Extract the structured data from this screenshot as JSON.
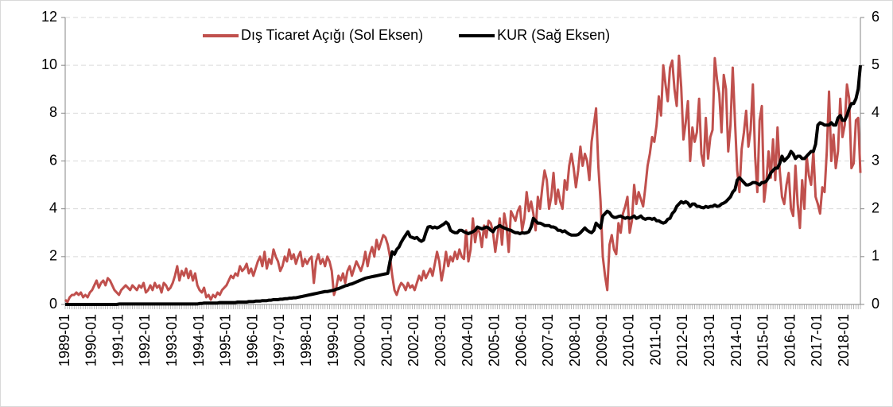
{
  "chart_data": {
    "type": "line",
    "categories": [
      "1989-01",
      null,
      null,
      null,
      null,
      null,
      null,
      null,
      null,
      null,
      null,
      null,
      "1990-01",
      null,
      null,
      null,
      null,
      null,
      null,
      null,
      null,
      null,
      null,
      null,
      "1991-01",
      null,
      null,
      null,
      null,
      null,
      null,
      null,
      null,
      null,
      null,
      null,
      "1992-01",
      null,
      null,
      null,
      null,
      null,
      null,
      null,
      null,
      null,
      null,
      null,
      "1993-01",
      null,
      null,
      null,
      null,
      null,
      null,
      null,
      null,
      null,
      null,
      null,
      "1994-01",
      null,
      null,
      null,
      null,
      null,
      null,
      null,
      null,
      null,
      null,
      null,
      "1995-01",
      null,
      null,
      null,
      null,
      null,
      null,
      null,
      null,
      null,
      null,
      null,
      "1996-01",
      null,
      null,
      null,
      null,
      null,
      null,
      null,
      null,
      null,
      null,
      null,
      "1997-01",
      null,
      null,
      null,
      null,
      null,
      null,
      null,
      null,
      null,
      null,
      null,
      "1998-01",
      null,
      null,
      null,
      null,
      null,
      null,
      null,
      null,
      null,
      null,
      null,
      "1999-01",
      null,
      null,
      null,
      null,
      null,
      null,
      null,
      null,
      null,
      null,
      null,
      "2000-01",
      null,
      null,
      null,
      null,
      null,
      null,
      null,
      null,
      null,
      null,
      null,
      "2001-01",
      null,
      null,
      null,
      null,
      null,
      null,
      null,
      null,
      null,
      null,
      null,
      "2002-01",
      null,
      null,
      null,
      null,
      null,
      null,
      null,
      null,
      null,
      null,
      null,
      "2003-01",
      null,
      null,
      null,
      null,
      null,
      null,
      null,
      null,
      null,
      null,
      null,
      "2004-01",
      null,
      null,
      null,
      null,
      null,
      null,
      null,
      null,
      null,
      null,
      null,
      "2005-01",
      null,
      null,
      null,
      null,
      null,
      null,
      null,
      null,
      null,
      null,
      null,
      "2006-01",
      null,
      null,
      null,
      null,
      null,
      null,
      null,
      null,
      null,
      null,
      null,
      "2007-01",
      null,
      null,
      null,
      null,
      null,
      null,
      null,
      null,
      null,
      null,
      null,
      "2008-01",
      null,
      null,
      null,
      null,
      null,
      null,
      null,
      null,
      null,
      null,
      null,
      "2009-01",
      null,
      null,
      null,
      null,
      null,
      null,
      null,
      null,
      null,
      null,
      null,
      "2010-01",
      null,
      null,
      null,
      null,
      null,
      null,
      null,
      null,
      null,
      null,
      null,
      "2011-01",
      null,
      null,
      null,
      null,
      null,
      null,
      null,
      null,
      null,
      null,
      null,
      "2012-01",
      null,
      null,
      null,
      null,
      null,
      null,
      null,
      null,
      null,
      null,
      null,
      "2013-01",
      null,
      null,
      null,
      null,
      null,
      null,
      null,
      null,
      null,
      null,
      null,
      "2014-01",
      null,
      null,
      null,
      null,
      null,
      null,
      null,
      null,
      null,
      null,
      null,
      "2015-01",
      null,
      null,
      null,
      null,
      null,
      null,
      null,
      null,
      null,
      null,
      null,
      "2016-01",
      null,
      null,
      null,
      null,
      null,
      null,
      null,
      null,
      null,
      null,
      null,
      "2017-01",
      null,
      null,
      null,
      null,
      null,
      null,
      null,
      null,
      null,
      null,
      null,
      "2018-01",
      null,
      null,
      null,
      null,
      null,
      null,
      null
    ],
    "series": [
      {
        "name": "Dış Ticaret Açığı (Sol Eksen)",
        "color": "#c0504d",
        "axis": "y",
        "values": [
          0.2,
          0.1,
          0.3,
          0.4,
          0.4,
          0.5,
          0.4,
          0.5,
          0.3,
          0.4,
          0.3,
          0.5,
          0.6,
          0.8,
          1.0,
          0.7,
          0.9,
          1.0,
          0.8,
          1.1,
          1.0,
          0.8,
          0.6,
          0.5,
          0.4,
          0.6,
          0.7,
          0.8,
          0.7,
          0.6,
          0.8,
          0.7,
          0.6,
          0.8,
          0.7,
          0.9,
          0.5,
          0.6,
          0.8,
          0.6,
          0.9,
          0.7,
          0.8,
          0.5,
          0.9,
          0.8,
          0.6,
          0.7,
          0.9,
          1.2,
          1.6,
          1.0,
          1.4,
          1.2,
          1.5,
          1.1,
          1.4,
          1.0,
          1.3,
          0.8,
          0.6,
          0.5,
          0.7,
          0.3,
          0.4,
          0.2,
          0.4,
          0.3,
          0.5,
          0.4,
          0.6,
          0.7,
          0.8,
          1.0,
          1.2,
          1.1,
          1.3,
          1.2,
          1.6,
          1.4,
          1.5,
          1.7,
          1.3,
          1.5,
          1.2,
          1.5,
          1.8,
          2.0,
          1.6,
          2.2,
          1.5,
          1.9,
          1.7,
          2.3,
          2.0,
          1.8,
          1.4,
          1.6,
          2.0,
          1.8,
          2.3,
          1.9,
          2.1,
          1.7,
          2.0,
          2.2,
          1.6,
          1.9,
          1.7,
          1.9,
          2.0,
          0.9,
          1.8,
          2.1,
          1.7,
          1.9,
          1.6,
          2.0,
          1.8,
          1.4,
          0.4,
          0.7,
          1.2,
          1.0,
          1.3,
          0.9,
          1.4,
          1.6,
          1.2,
          1.5,
          1.8,
          1.6,
          1.4,
          1.7,
          2.2,
          1.6,
          2.1,
          2.4,
          2.0,
          2.7,
          2.3,
          2.6,
          2.9,
          2.8,
          2.5,
          2.0,
          1.2,
          0.6,
          0.4,
          0.7,
          0.9,
          0.8,
          0.6,
          0.9,
          0.7,
          0.8,
          0.6,
          0.9,
          1.2,
          1.0,
          1.4,
          1.1,
          1.3,
          1.5,
          1.2,
          1.7,
          2.2,
          1.8,
          1.0,
          1.5,
          2.2,
          1.6,
          2.0,
          1.8,
          2.2,
          1.9,
          2.3,
          2.0,
          1.9,
          3.1,
          1.8,
          2.3,
          3.6,
          2.6,
          3.2,
          3.0,
          2.4,
          3.3,
          2.8,
          3.5,
          3.4,
          3.0,
          2.2,
          2.9,
          3.6,
          2.5,
          3.8,
          3.3,
          2.2,
          3.9,
          3.7,
          3.5,
          3.9,
          4.1,
          3.1,
          3.6,
          4.7,
          3.9,
          4.3,
          3.8,
          3.1,
          4.5,
          4.0,
          4.9,
          5.6,
          5.2,
          4.0,
          4.5,
          5.5,
          4.2,
          4.8,
          4.3,
          4.0,
          5.2,
          4.8,
          5.8,
          6.3,
          5.7,
          4.9,
          5.6,
          6.6,
          5.8,
          6.3,
          6.0,
          5.2,
          6.8,
          7.5,
          8.2,
          5.8,
          4.3,
          2.0,
          1.2,
          0.6,
          2.5,
          2.9,
          2.3,
          2.1,
          3.4,
          3.0,
          3.8,
          4.1,
          4.5,
          3.0,
          3.5,
          5.0,
          4.2,
          4.7,
          4.4,
          4.1,
          4.9,
          5.8,
          6.3,
          7.0,
          6.8,
          7.5,
          8.7,
          7.9,
          10.0,
          9.2,
          8.5,
          9.9,
          10.2,
          9.0,
          8.3,
          10.4,
          9.1,
          6.9,
          7.6,
          8.5,
          6.0,
          7.4,
          6.8,
          7.2,
          8.6,
          6.3,
          5.8,
          7.8,
          6.1,
          7.0,
          7.3,
          10.3,
          9.4,
          8.8,
          7.2,
          9.6,
          9.0,
          6.4,
          7.5,
          9.9,
          7.7,
          5.6,
          4.7,
          6.5,
          7.2,
          8.1,
          6.6,
          7.3,
          9.2,
          6.2,
          4.7,
          7.7,
          8.3,
          4.3,
          5.1,
          6.4,
          5.3,
          6.9,
          5.2,
          7.4,
          5.6,
          4.5,
          4.2,
          5.0,
          5.5,
          4.0,
          3.7,
          5.8,
          4.2,
          3.2,
          5.2,
          4.0,
          6.2,
          5.4,
          5.0,
          6.4,
          4.5,
          4.2,
          3.8,
          4.9,
          4.7,
          6.4,
          8.9,
          6.0,
          7.1,
          5.7,
          6.4,
          8.6,
          7.0,
          7.5,
          9.2,
          8.6,
          5.7,
          5.9,
          7.7,
          7.8,
          5.5
        ]
      },
      {
        "name": "KUR (Sağ Eksen)",
        "color": "#000000",
        "axis": "y2",
        "values": [
          0.0,
          0.0,
          0.0,
          0.0,
          0.0,
          0.0,
          0.0,
          0.0,
          0.0,
          0.0,
          0.0,
          0.0,
          0.0,
          0.0,
          0.0,
          0.0,
          0.0,
          0.0,
          0.0,
          0.0,
          0.0,
          0.0,
          0.0,
          0.0,
          0.01,
          0.01,
          0.01,
          0.01,
          0.01,
          0.01,
          0.01,
          0.01,
          0.01,
          0.01,
          0.01,
          0.01,
          0.01,
          0.01,
          0.01,
          0.01,
          0.01,
          0.01,
          0.01,
          0.01,
          0.01,
          0.01,
          0.01,
          0.01,
          0.01,
          0.01,
          0.01,
          0.01,
          0.01,
          0.01,
          0.01,
          0.01,
          0.01,
          0.01,
          0.01,
          0.01,
          0.02,
          0.02,
          0.03,
          0.03,
          0.03,
          0.03,
          0.03,
          0.03,
          0.03,
          0.04,
          0.04,
          0.04,
          0.04,
          0.04,
          0.04,
          0.04,
          0.04,
          0.05,
          0.05,
          0.05,
          0.05,
          0.05,
          0.06,
          0.06,
          0.06,
          0.07,
          0.07,
          0.07,
          0.08,
          0.08,
          0.08,
          0.09,
          0.09,
          0.1,
          0.1,
          0.1,
          0.11,
          0.11,
          0.12,
          0.12,
          0.13,
          0.13,
          0.14,
          0.14,
          0.15,
          0.16,
          0.17,
          0.18,
          0.19,
          0.2,
          0.21,
          0.22,
          0.23,
          0.24,
          0.25,
          0.26,
          0.27,
          0.27,
          0.28,
          0.29,
          0.3,
          0.32,
          0.33,
          0.35,
          0.37,
          0.39,
          0.4,
          0.42,
          0.43,
          0.45,
          0.47,
          0.49,
          0.51,
          0.53,
          0.55,
          0.56,
          0.57,
          0.58,
          0.59,
          0.6,
          0.61,
          0.62,
          0.63,
          0.64,
          0.65,
          0.9,
          1.1,
          1.05,
          1.15,
          1.2,
          1.3,
          1.38,
          1.45,
          1.52,
          1.42,
          1.4,
          1.38,
          1.4,
          1.35,
          1.32,
          1.35,
          1.5,
          1.62,
          1.63,
          1.6,
          1.62,
          1.6,
          1.62,
          1.65,
          1.68,
          1.72,
          1.68,
          1.55,
          1.52,
          1.5,
          1.5,
          1.55,
          1.55,
          1.52,
          1.5,
          1.48,
          1.5,
          1.52,
          1.55,
          1.62,
          1.6,
          1.58,
          1.6,
          1.62,
          1.6,
          1.55,
          1.52,
          1.6,
          1.62,
          1.65,
          1.62,
          1.6,
          1.58,
          1.56,
          1.55,
          1.52,
          1.5,
          1.5,
          1.48,
          1.5,
          1.49,
          1.5,
          1.52,
          1.62,
          1.8,
          1.75,
          1.7,
          1.7,
          1.68,
          1.65,
          1.65,
          1.65,
          1.62,
          1.62,
          1.6,
          1.55,
          1.55,
          1.52,
          1.54,
          1.5,
          1.47,
          1.45,
          1.45,
          1.45,
          1.46,
          1.5,
          1.55,
          1.6,
          1.55,
          1.52,
          1.5,
          1.55,
          1.7,
          1.65,
          1.6,
          1.85,
          1.9,
          1.95,
          1.92,
          1.85,
          1.82,
          1.82,
          1.84,
          1.85,
          1.82,
          1.8,
          1.82,
          1.8,
          1.82,
          1.85,
          1.8,
          1.82,
          1.85,
          1.8,
          1.78,
          1.8,
          1.8,
          1.78,
          1.8,
          1.75,
          1.75,
          1.72,
          1.7,
          1.72,
          1.78,
          1.8,
          1.9,
          1.95,
          2.05,
          2.1,
          2.15,
          2.12,
          2.15,
          2.12,
          2.05,
          2.1,
          2.1,
          2.05,
          2.05,
          2.03,
          2.02,
          2.05,
          2.03,
          2.05,
          2.05,
          2.08,
          2.05,
          2.06,
          2.1,
          2.12,
          2.15,
          2.2,
          2.25,
          2.35,
          2.4,
          2.6,
          2.65,
          2.6,
          2.55,
          2.5,
          2.5,
          2.52,
          2.55,
          2.55,
          2.53,
          2.5,
          2.55,
          2.55,
          2.58,
          2.65,
          2.75,
          2.8,
          2.85,
          2.85,
          2.95,
          3.1,
          3.0,
          3.05,
          3.1,
          3.2,
          3.15,
          3.05,
          3.1,
          3.1,
          3.05,
          3.05,
          3.1,
          3.15,
          3.2,
          3.2,
          3.35,
          3.75,
          3.8,
          3.78,
          3.75,
          3.75,
          3.75,
          3.8,
          3.75,
          3.75,
          3.9,
          3.95,
          3.85,
          3.85,
          3.95,
          4.1,
          4.2,
          4.2,
          4.3,
          4.5,
          5.0
        ]
      }
    ],
    "ylim": [
      0,
      12
    ],
    "yticks": [
      0,
      2,
      4,
      6,
      8,
      10,
      12
    ],
    "y2lim": [
      0,
      6
    ],
    "y2ticks": [
      0,
      1,
      2,
      3,
      4,
      5,
      6
    ],
    "grid": true,
    "legend": "upper center"
  }
}
